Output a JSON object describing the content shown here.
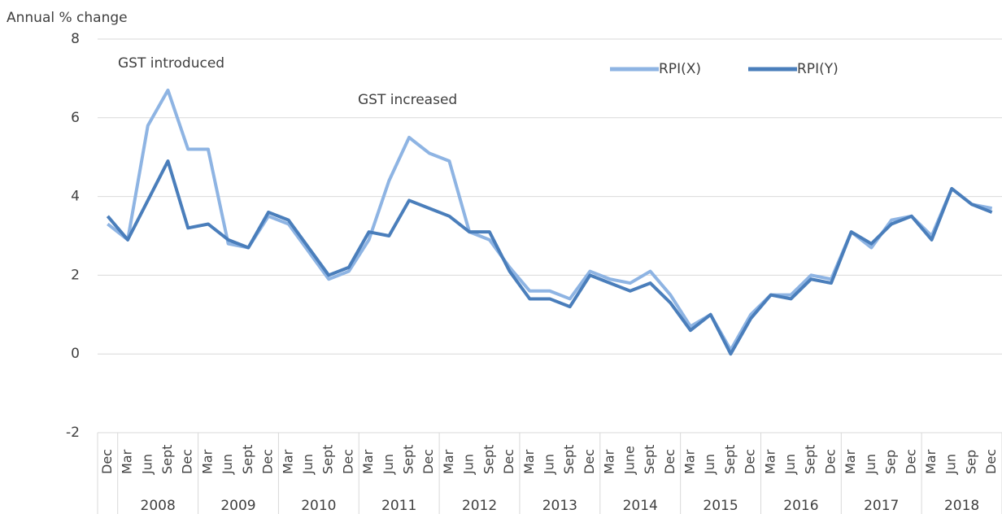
{
  "chart_data": {
    "type": "line",
    "y_label": "Annual % change",
    "annotations": [
      "GST introduced",
      "GST increased"
    ],
    "groups": [
      {
        "label": null,
        "categories": [
          "Dec"
        ]
      },
      {
        "label": "2008",
        "categories": [
          "Mar",
          "Jun",
          "Sept",
          "Dec"
        ]
      },
      {
        "label": "2009",
        "categories": [
          "Mar",
          "Jun",
          "Sept",
          "Dec"
        ]
      },
      {
        "label": "2010",
        "categories": [
          "Mar",
          "Jun",
          "Sept",
          "Dec"
        ]
      },
      {
        "label": "2011",
        "categories": [
          "Mar",
          "Jun",
          "Sept",
          "Dec"
        ]
      },
      {
        "label": "2012",
        "categories": [
          "Mar",
          "Jun",
          "Sept",
          "Dec"
        ]
      },
      {
        "label": "2013",
        "categories": [
          "Mar",
          "Jun",
          "Sept",
          "Dec"
        ]
      },
      {
        "label": "2014",
        "categories": [
          "Mar",
          "June",
          "Sept",
          "Dec"
        ]
      },
      {
        "label": "2015",
        "categories": [
          "Mar",
          "Jun",
          "Sept",
          "Dec"
        ]
      },
      {
        "label": "2016",
        "categories": [
          "Mar",
          "Jun",
          "Sept",
          "Dec"
        ]
      },
      {
        "label": "2017",
        "categories": [
          "Mar",
          "Jun",
          "Sep",
          "Dec"
        ]
      },
      {
        "label": "2018",
        "categories": [
          "Mar",
          "Jun",
          "Sep",
          "Dec"
        ]
      }
    ],
    "series": [
      {
        "name": "RPI(X)",
        "color": "#8eb4e3",
        "values": [
          3.3,
          2.9,
          5.8,
          6.7,
          5.2,
          5.2,
          2.8,
          2.7,
          3.5,
          3.3,
          2.6,
          1.9,
          2.1,
          2.9,
          4.4,
          5.5,
          5.1,
          4.9,
          3.1,
          2.9,
          2.2,
          1.6,
          1.6,
          1.4,
          2.1,
          1.9,
          1.8,
          2.1,
          1.5,
          0.7,
          1.0,
          0.1,
          1.0,
          1.5,
          1.5,
          2.0,
          1.9,
          3.1,
          2.7,
          3.4,
          3.5,
          3.0,
          4.2,
          3.8,
          3.7
        ]
      },
      {
        "name": "RPI(Y)",
        "color": "#4a7ebb",
        "values": [
          3.5,
          2.9,
          3.9,
          4.9,
          3.2,
          3.3,
          2.9,
          2.7,
          3.6,
          3.4,
          2.7,
          2.0,
          2.2,
          3.1,
          3.0,
          3.9,
          3.7,
          3.5,
          3.1,
          3.1,
          2.1,
          1.4,
          1.4,
          1.2,
          2.0,
          1.8,
          1.6,
          1.8,
          1.3,
          0.6,
          1.0,
          0.0,
          0.9,
          1.5,
          1.4,
          1.9,
          1.8,
          3.1,
          2.8,
          3.3,
          3.5,
          2.9,
          4.2,
          3.8,
          3.6
        ]
      }
    ],
    "ylim": [
      -2,
      8
    ],
    "yticks": [
      -2,
      0,
      2,
      4,
      6,
      8
    ],
    "grid": true
  }
}
